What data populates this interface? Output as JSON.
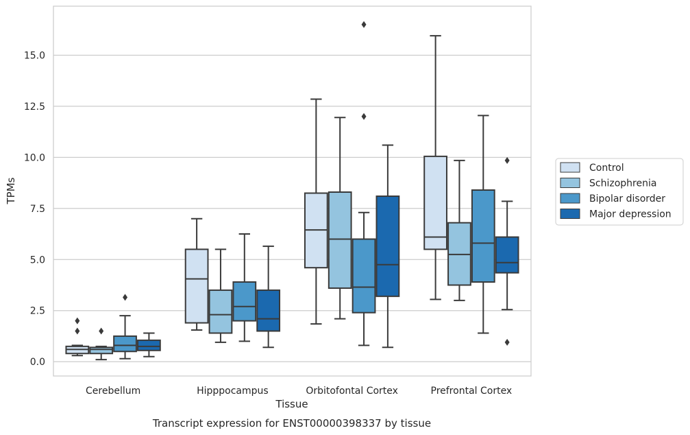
{
  "chart_data": {
    "type": "box",
    "xlabel": "Tissue",
    "ylabel": "TPMs",
    "caption": "Transcript expression for ENST00000398337 by tissue",
    "categories": [
      "Cerebellum",
      "Hipppocampus",
      "Orbitofontal Cortex",
      "Prefrontal Cortex"
    ],
    "ylim": [
      -0.7,
      17.4
    ],
    "yticks": [
      0.0,
      2.5,
      5.0,
      7.5,
      10.0,
      12.5,
      15.0
    ],
    "ytick_labels": [
      "0.0",
      "2.5",
      "5.0",
      "7.5",
      "10.0",
      "12.5",
      "15.0"
    ],
    "grid": "horizontal",
    "legend_position": "right",
    "series": [
      {
        "name": "Control",
        "color": "#d0e1f2",
        "boxes": [
          {
            "whisker_low": 0.3,
            "q1": 0.4,
            "median": 0.6,
            "q3": 0.75,
            "whisker_high": 0.8,
            "outliers": [
              1.5,
              2.0
            ]
          },
          {
            "whisker_low": 1.55,
            "q1": 1.9,
            "median": 4.05,
            "q3": 5.5,
            "whisker_high": 7.0,
            "outliers": []
          },
          {
            "whisker_low": 1.85,
            "q1": 4.6,
            "median": 6.45,
            "q3": 8.25,
            "whisker_high": 12.85,
            "outliers": []
          },
          {
            "whisker_low": 3.05,
            "q1": 5.5,
            "median": 6.1,
            "q3": 10.05,
            "whisker_high": 15.95,
            "outliers": []
          }
        ]
      },
      {
        "name": "Schizophrenia",
        "color": "#94c4df",
        "boxes": [
          {
            "whisker_low": 0.1,
            "q1": 0.4,
            "median": 0.6,
            "q3": 0.7,
            "whisker_high": 0.75,
            "outliers": [
              1.5
            ]
          },
          {
            "whisker_low": 0.95,
            "q1": 1.4,
            "median": 2.3,
            "q3": 3.5,
            "whisker_high": 5.5,
            "outliers": []
          },
          {
            "whisker_low": 2.1,
            "q1": 3.6,
            "median": 6.0,
            "q3": 8.3,
            "whisker_high": 11.95,
            "outliers": []
          },
          {
            "whisker_low": 3.0,
            "q1": 3.75,
            "median": 5.25,
            "q3": 6.8,
            "whisker_high": 9.85,
            "outliers": []
          }
        ]
      },
      {
        "name": "Bipolar disorder",
        "color": "#4b98ca",
        "boxes": [
          {
            "whisker_low": 0.15,
            "q1": 0.5,
            "median": 0.8,
            "q3": 1.25,
            "whisker_high": 2.25,
            "outliers": [
              3.15
            ]
          },
          {
            "whisker_low": 1.0,
            "q1": 2.0,
            "median": 2.7,
            "q3": 3.9,
            "whisker_high": 6.25,
            "outliers": []
          },
          {
            "whisker_low": 0.8,
            "q1": 2.4,
            "median": 3.65,
            "q3": 6.0,
            "whisker_high": 7.3,
            "outliers": [
              12.0,
              16.5
            ]
          },
          {
            "whisker_low": 1.4,
            "q1": 3.9,
            "median": 5.8,
            "q3": 8.4,
            "whisker_high": 12.05,
            "outliers": []
          }
        ]
      },
      {
        "name": "Major depression",
        "color": "#1b69af",
        "boxes": [
          {
            "whisker_low": 0.25,
            "q1": 0.55,
            "median": 0.75,
            "q3": 1.05,
            "whisker_high": 1.4,
            "outliers": []
          },
          {
            "whisker_low": 0.7,
            "q1": 1.5,
            "median": 2.1,
            "q3": 3.5,
            "whisker_high": 5.65,
            "outliers": []
          },
          {
            "whisker_low": 0.7,
            "q1": 3.2,
            "median": 4.75,
            "q3": 8.1,
            "whisker_high": 10.6,
            "outliers": []
          },
          {
            "whisker_low": 2.55,
            "q1": 4.35,
            "median": 4.85,
            "q3": 6.1,
            "whisker_high": 7.85,
            "outliers": [
              9.85,
              0.95
            ]
          }
        ]
      }
    ]
  }
}
